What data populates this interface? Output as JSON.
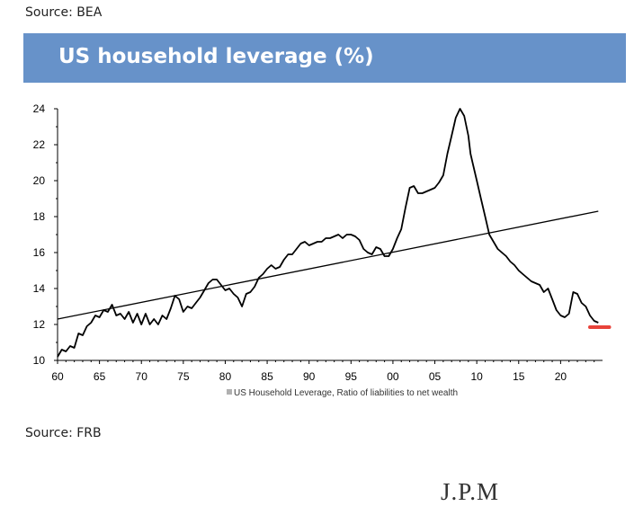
{
  "header": {
    "source_top": "Source: BEA",
    "title": "US household leverage (%)"
  },
  "footer": {
    "source_bottom": "Source: FRB",
    "logo_text": "J.P.M"
  },
  "colors": {
    "title_band": "#6792c9",
    "series_line": "#000000",
    "trend_line": "#000000",
    "marker": "#e8433a"
  },
  "chart_data": {
    "type": "line",
    "title": "",
    "xlabel": "",
    "ylabel": "",
    "xlim": [
      1960,
      2025
    ],
    "ylim": [
      10,
      24
    ],
    "x_ticks": [
      1960,
      1965,
      1970,
      1975,
      1980,
      1985,
      1990,
      1995,
      2000,
      2005,
      2010,
      2015,
      2020
    ],
    "x_tick_labels": [
      "60",
      "65",
      "70",
      "75",
      "80",
      "85",
      "90",
      "95",
      "00",
      "05",
      "10",
      "15",
      "20"
    ],
    "y_ticks": [
      10,
      12,
      14,
      16,
      18,
      20,
      22,
      24
    ],
    "y_tick_labels": [
      "10",
      "12",
      "14",
      "16",
      "18",
      "20",
      "22",
      "24"
    ],
    "grid": false,
    "legend_position": "bottom-center",
    "series": [
      {
        "name": "US Household Leverage, Ratio of liabilities to net wealth",
        "x": [
          1960,
          1960.5,
          1961,
          1961.5,
          1962,
          1962.5,
          1963,
          1963.5,
          1964,
          1964.5,
          1965,
          1965.5,
          1966,
          1966.5,
          1967,
          1967.5,
          1968,
          1968.5,
          1969,
          1969.5,
          1970,
          1970.5,
          1971,
          1971.5,
          1972,
          1972.5,
          1973,
          1973.5,
          1974,
          1974.5,
          1975,
          1975.5,
          1976,
          1976.5,
          1977,
          1977.5,
          1978,
          1978.5,
          1979,
          1979.5,
          1980,
          1980.5,
          1981,
          1981.5,
          1982,
          1982.5,
          1983,
          1983.5,
          1984,
          1984.5,
          1985,
          1985.5,
          1986,
          1986.5,
          1987,
          1987.5,
          1988,
          1988.5,
          1989,
          1989.5,
          1990,
          1990.5,
          1991,
          1991.5,
          1992,
          1992.5,
          1993,
          1993.5,
          1994,
          1994.5,
          1995,
          1995.5,
          1996,
          1996.5,
          1997,
          1997.5,
          1998,
          1998.5,
          1999,
          1999.5,
          2000,
          2000.5,
          2001,
          2001.5,
          2002,
          2002.5,
          2003,
          2003.5,
          2004,
          2004.5,
          2005,
          2005.5,
          2006,
          2006.5,
          2007,
          2007.5,
          2008,
          2008.5,
          2009,
          2009.25,
          2009.5,
          2010,
          2010.5,
          2011,
          2011.5,
          2012,
          2012.5,
          2013,
          2013.5,
          2014,
          2014.5,
          2015,
          2015.5,
          2016,
          2016.5,
          2017,
          2017.5,
          2018,
          2018.5,
          2019,
          2019.5,
          2020,
          2020.5,
          2021,
          2021.5,
          2022,
          2022.5,
          2023,
          2023.5,
          2024,
          2024.5
        ],
        "values": [
          10.2,
          10.6,
          10.5,
          10.8,
          10.7,
          11.5,
          11.4,
          11.9,
          12.1,
          12.5,
          12.4,
          12.8,
          12.7,
          13.1,
          12.5,
          12.6,
          12.3,
          12.7,
          12.1,
          12.6,
          12.0,
          12.6,
          12.0,
          12.3,
          12.0,
          12.5,
          12.3,
          12.9,
          13.6,
          13.4,
          12.7,
          13.0,
          12.9,
          13.2,
          13.5,
          13.9,
          14.3,
          14.5,
          14.5,
          14.2,
          13.9,
          14.0,
          13.7,
          13.5,
          13.0,
          13.7,
          13.8,
          14.1,
          14.6,
          14.8,
          15.1,
          15.3,
          15.1,
          15.2,
          15.6,
          15.9,
          15.9,
          16.2,
          16.5,
          16.6,
          16.4,
          16.5,
          16.6,
          16.6,
          16.8,
          16.8,
          16.9,
          17.0,
          16.8,
          17.0,
          17.0,
          16.9,
          16.7,
          16.2,
          16.0,
          15.9,
          16.3,
          16.2,
          15.8,
          15.8,
          16.2,
          16.8,
          17.3,
          18.5,
          19.6,
          19.7,
          19.3,
          19.3,
          19.4,
          19.5,
          19.6,
          19.9,
          20.3,
          21.5,
          22.5,
          23.5,
          24.0,
          23.6,
          22.5,
          21.5,
          21.0,
          20.0,
          19.0,
          18.0,
          17.0,
          16.6,
          16.2,
          16.0,
          15.8,
          15.5,
          15.3,
          15.0,
          14.8,
          14.6,
          14.4,
          14.3,
          14.2,
          13.8,
          14.0,
          13.4,
          12.8,
          12.5,
          12.4,
          12.6,
          13.8,
          13.7,
          13.2,
          13.0,
          12.5,
          12.2,
          12.1
        ]
      },
      {
        "name": "",
        "type": "trend",
        "x": [
          1960,
          2024.5
        ],
        "values": [
          12.3,
          18.3
        ]
      },
      {
        "name": "",
        "type": "marker",
        "x": [
          2023.5,
          2025.8
        ],
        "values": [
          11.85,
          11.85
        ]
      }
    ]
  }
}
